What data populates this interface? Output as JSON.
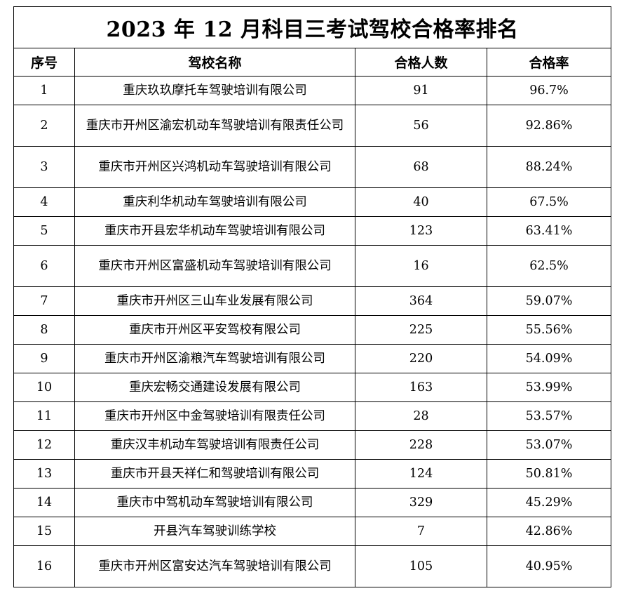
{
  "title": "2023 年 12 月科目三考试驾校合格率排名",
  "headers": [
    "序号",
    "驾校名称",
    "合格人数",
    "合格率"
  ],
  "rows": [
    {
      "no": "1",
      "name": "重庆玖玖摩托车驾驶培训有限公司",
      "passed": "91",
      "rate": "96.7%"
    },
    {
      "no": "2",
      "name": "重庆市开州区渝宏机动车驾驶培训有限责任公司",
      "passed": "56",
      "rate": "92.86%"
    },
    {
      "no": "3",
      "name": "重庆市开州区兴鸿机动车驾驶培训有限公司",
      "passed": "68",
      "rate": "88.24%"
    },
    {
      "no": "4",
      "name": "重庆利华机动车驾驶培训有限公司",
      "passed": "40",
      "rate": "67.5%"
    },
    {
      "no": "5",
      "name": "重庆市开县宏华机动车驾驶培训有限公司",
      "passed": "123",
      "rate": "63.41%"
    },
    {
      "no": "6",
      "name": "重庆市开州区富盛机动车驾驶培训有限公司",
      "passed": "16",
      "rate": "62.5%"
    },
    {
      "no": "7",
      "name": "重庆市开州区三山车业发展有限公司",
      "passed": "364",
      "rate": "59.07%"
    },
    {
      "no": "8",
      "name": "重庆市开州区平安驾校有限公司",
      "passed": "225",
      "rate": "55.56%"
    },
    {
      "no": "9",
      "name": "重庆市开州区渝粮汽车驾驶培训有限公司",
      "passed": "220",
      "rate": "54.09%"
    },
    {
      "no": "10",
      "name": "重庆宏畅交通建设发展有限公司",
      "passed": "163",
      "rate": "53.99%"
    },
    {
      "no": "11",
      "name": "重庆市开州区中金驾驶培训有限责任公司",
      "passed": "28",
      "rate": "53.57%"
    },
    {
      "no": "12",
      "name": "重庆汉丰机动车驾驶培训有限责任公司",
      "passed": "228",
      "rate": "53.07%"
    },
    {
      "no": "13",
      "name": "重庆市开县天祥仁和驾驶培训有限公司",
      "passed": "124",
      "rate": "50.81%"
    },
    {
      "no": "14",
      "name": "重庆市中驾机动车驾驶培训有限公司",
      "passed": "329",
      "rate": "45.29%"
    },
    {
      "no": "15",
      "name": "开县汽车驾驶训练学校",
      "passed": "7",
      "rate": "42.86%"
    },
    {
      "no": "16",
      "name": "重庆市开州区富安达汽车驾驶培训有限公司",
      "passed": "105",
      "rate": "40.95%"
    }
  ]
}
